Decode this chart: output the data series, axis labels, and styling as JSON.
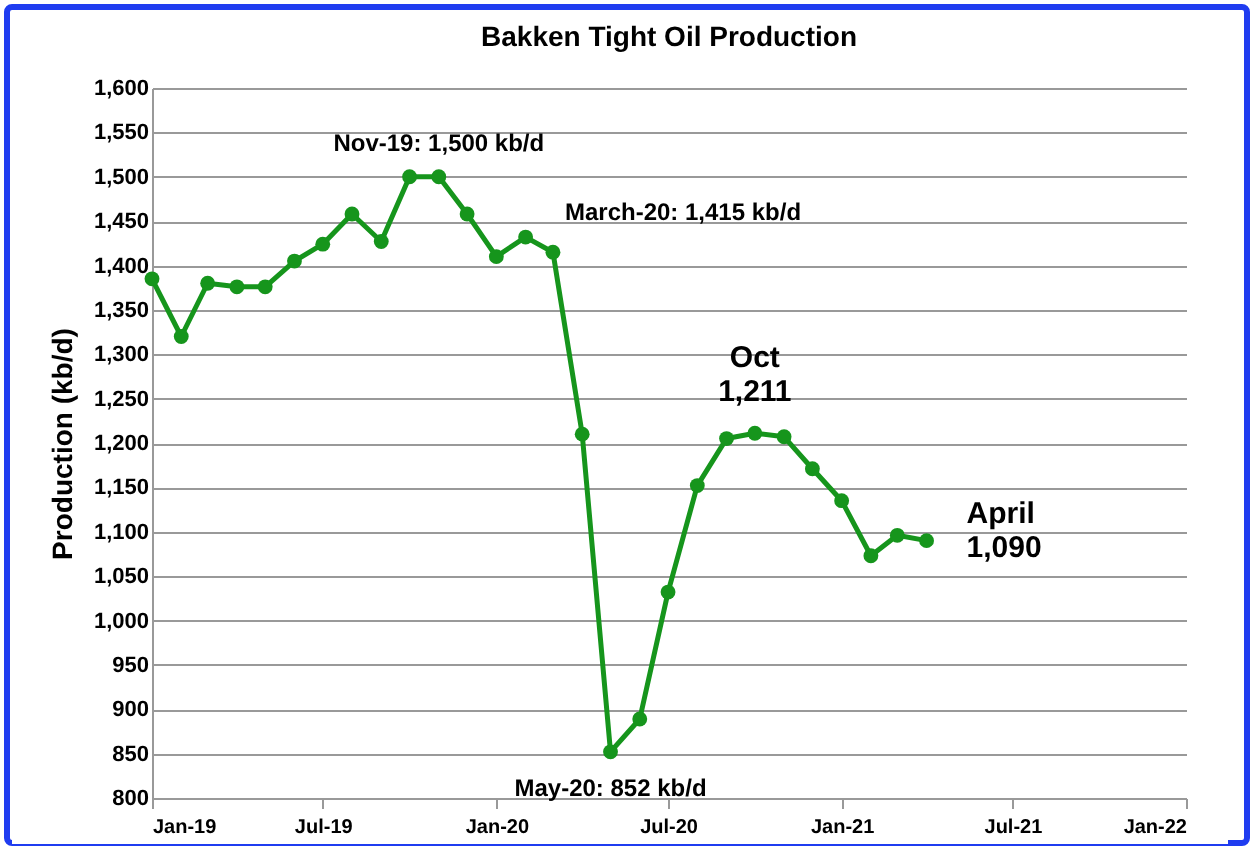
{
  "chart_data": {
    "type": "line",
    "title": "Bakken Tight Oil Production",
    "ylabel": "Production (kb/d)",
    "x": [
      "2019-01",
      "2019-02",
      "2019-03",
      "2019-04",
      "2019-05",
      "2019-06",
      "2019-07",
      "2019-08",
      "2019-09",
      "2019-10",
      "2019-11",
      "2019-12",
      "2020-01",
      "2020-02",
      "2020-03",
      "2020-04",
      "2020-05",
      "2020-06",
      "2020-07",
      "2020-08",
      "2020-09",
      "2020-10",
      "2020-11",
      "2020-12",
      "2021-01",
      "2021-02",
      "2021-03",
      "2021-04"
    ],
    "series": [
      {
        "color": "#16951c",
        "values": [
          1385,
          1320,
          1380,
          1376,
          1376,
          1405,
          1424,
          1458,
          1427,
          1500,
          1500,
          1458,
          1410,
          1432,
          1415,
          1210,
          852,
          889,
          1032,
          1152,
          1205,
          1211,
          1207,
          1171,
          1135,
          1073,
          1096,
          1090
        ]
      }
    ],
    "xlim": [
      "2019-01",
      "2022-01"
    ],
    "xticks": [
      {
        "value": "2019-01",
        "label": "Jan-19"
      },
      {
        "value": "2019-07",
        "label": "Jul-19"
      },
      {
        "value": "2020-01",
        "label": "Jan-20"
      },
      {
        "value": "2020-07",
        "label": "Jul-20"
      },
      {
        "value": "2021-01",
        "label": "Jan-21"
      },
      {
        "value": "2021-07",
        "label": "Jul-21"
      },
      {
        "value": "2022-01",
        "label": "Jan-22"
      }
    ],
    "ylim": [
      800,
      1600
    ],
    "yticks": [
      {
        "value": 800,
        "label": "800"
      },
      {
        "value": 850,
        "label": "850"
      },
      {
        "value": 900,
        "label": "900"
      },
      {
        "value": 950,
        "label": "950"
      },
      {
        "value": 1000,
        "label": "1,000"
      },
      {
        "value": 1050,
        "label": "1,050"
      },
      {
        "value": 1100,
        "label": "1,100"
      },
      {
        "value": 1150,
        "label": "1,150"
      },
      {
        "value": 1200,
        "label": "1,200"
      },
      {
        "value": 1250,
        "label": "1,250"
      },
      {
        "value": 1300,
        "label": "1,300"
      },
      {
        "value": 1350,
        "label": "1,350"
      },
      {
        "value": 1400,
        "label": "1,400"
      },
      {
        "value": 1450,
        "label": "1,450"
      },
      {
        "value": 1500,
        "label": "1,500"
      },
      {
        "value": 1550,
        "label": "1,550"
      },
      {
        "value": 1600,
        "label": "1,600"
      }
    ],
    "grid": "y",
    "marker": "circle",
    "line_style": "solid",
    "annotations": [
      {
        "text": "Nov-19: 1,500 kb/d",
        "x": "2019-11",
        "y": 1500
      },
      {
        "text": "March-20: 1,415 kb/d",
        "x": "2020-03",
        "y": 1415
      },
      {
        "text": "Oct\n1,211",
        "x": "2020-10",
        "y": 1211
      },
      {
        "text": "April\n1,090",
        "x": "2021-04",
        "y": 1090
      },
      {
        "text": "May-20: 852 kb/d",
        "x": "2020-05",
        "y": 852
      }
    ]
  }
}
